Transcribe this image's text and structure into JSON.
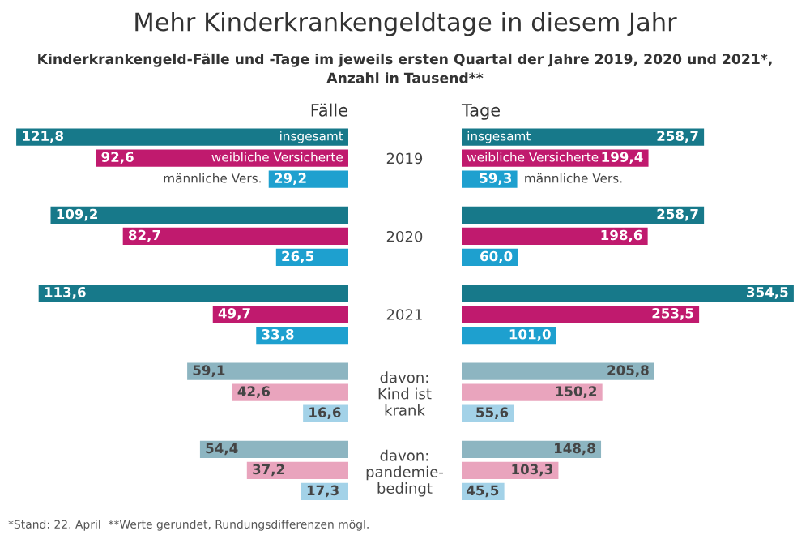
{
  "chart_data": [
    {
      "type": "bar",
      "orientation": "horizontal",
      "title": "Mehr Kinderkrankengeldtage in diesem Jahr",
      "subtitle": "Kinderkrankengeld-Fälle und -Tage im jeweils ersten Quartal der Jahre 2019, 2020 und 2021*,\nAnzahl in Tausend**",
      "xlabel": "Fälle",
      "categories": [
        "2019",
        "2020",
        "2021",
        "davon:\nKind ist\nkrank",
        "davon:\npandemie-\nbedingt"
      ],
      "tick_labels": "y",
      "legend": false,
      "series": [
        {
          "name": "insgesamt",
          "colors": [
            "#17798a",
            "#17798a",
            "#17798a",
            "#8db5c1",
            "#8db5c1"
          ],
          "values": [
            121.8,
            109.2,
            113.6,
            59.1,
            54.4
          ],
          "value_labels": [
            "121,8",
            "109,2",
            "113,6",
            "59,1",
            "54,4"
          ]
        },
        {
          "name": "weibliche Versicherte",
          "colors": [
            "#c01a6e",
            "#c01a6e",
            "#c01a6e",
            "#e9a4bd",
            "#e9a4bd"
          ],
          "values": [
            92.6,
            82.7,
            49.7,
            42.6,
            37.2
          ],
          "value_labels": [
            "92,6",
            "82,7",
            "49,7",
            "42,6",
            "37,2"
          ]
        },
        {
          "name": "männliche Vers.",
          "colors": [
            "#1ea0cf",
            "#1ea0cf",
            "#1ea0cf",
            "#a3d2e8",
            "#a3d2e8"
          ],
          "values": [
            29.2,
            26.5,
            33.8,
            16.6,
            17.3
          ],
          "value_labels": [
            "29,2",
            "26,5",
            "33,8",
            "16,6",
            "17,3"
          ]
        }
      ]
    },
    {
      "type": "bar",
      "orientation": "horizontal",
      "xlabel": "Tage",
      "tick_labels": false,
      "legend": false,
      "annotations": [
        "*Stand: 22. April  **Werte gerundet, Rundungsdifferenzen mögl."
      ],
      "series": [
        {
          "name": "insgesamt",
          "colors": [
            "#17798a",
            "#17798a",
            "#17798a",
            "#8db5c1",
            "#8db5c1"
          ],
          "values": [
            258.7,
            258.7,
            354.5,
            205.8,
            148.8
          ],
          "value_labels": [
            "258,7",
            "258,7",
            "354,5",
            "205,8",
            "148,8"
          ]
        },
        {
          "name": "weibliche Versicherte",
          "colors": [
            "#c01a6e",
            "#c01a6e",
            "#c01a6e",
            "#e9a4bd",
            "#e9a4bd"
          ],
          "values": [
            199.4,
            198.6,
            253.5,
            150.2,
            103.3
          ],
          "value_labels": [
            "199,4",
            "198,6",
            "253,5",
            "150,2",
            "103,3"
          ]
        },
        {
          "name": "männliche Vers.",
          "colors": [
            "#1ea0cf",
            "#1ea0cf",
            "#1ea0cf",
            "#a3d2e8",
            "#a3d2e8"
          ],
          "values": [
            59.3,
            60.0,
            101.0,
            55.6,
            45.5
          ],
          "value_labels": [
            "59,3",
            "60,0",
            "101,0",
            "55,6",
            "45,5"
          ]
        }
      ]
    }
  ]
}
